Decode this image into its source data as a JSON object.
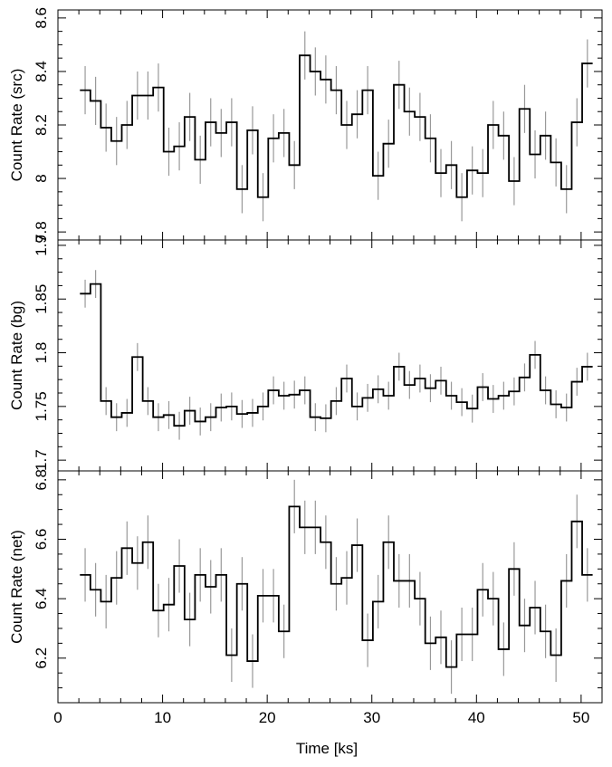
{
  "chart_data": [
    {
      "type": "line",
      "panel": "src",
      "ylabel": "Count Rate (src)",
      "xlabel": "",
      "xlim": [
        0,
        52
      ],
      "ylim": [
        7.77,
        8.63
      ],
      "yticks": [
        7.8,
        8,
        8.2,
        8.4,
        8.6
      ],
      "ytick_labels": [
        "7.8",
        "8",
        "8.2",
        "8.4",
        "8.6"
      ],
      "bin_width": 1.0,
      "series": [
        {
          "style": "step",
          "x": [
            2.6,
            3.6,
            4.6,
            5.6,
            6.6,
            7.6,
            8.6,
            9.6,
            10.6,
            11.6,
            12.6,
            13.6,
            14.6,
            15.6,
            16.6,
            17.6,
            18.6,
            19.6,
            20.6,
            21.6,
            22.6,
            23.6,
            24.6,
            25.6,
            26.6,
            27.6,
            28.6,
            29.6,
            30.6,
            31.6,
            32.6,
            33.6,
            34.6,
            35.6,
            36.6,
            37.6,
            38.6,
            39.6,
            40.6,
            41.6,
            42.6,
            43.6,
            44.6,
            45.6,
            46.6,
            47.6,
            48.6,
            49.6,
            50.6
          ],
          "y": [
            8.33,
            8.29,
            8.19,
            8.14,
            8.2,
            8.31,
            8.31,
            8.34,
            8.1,
            8.12,
            8.23,
            8.07,
            8.21,
            8.17,
            8.21,
            7.96,
            8.18,
            7.93,
            8.15,
            8.17,
            8.05,
            8.46,
            8.4,
            8.37,
            8.33,
            8.2,
            8.24,
            8.33,
            8.01,
            8.13,
            8.35,
            8.25,
            8.23,
            8.15,
            8.02,
            8.05,
            7.93,
            8.03,
            8.02,
            8.2,
            8.16,
            7.99,
            8.26,
            8.09,
            8.16,
            8.06,
            7.96,
            8.21,
            8.43
          ],
          "err": [
            0.09,
            0.09,
            0.09,
            0.09,
            0.09,
            0.09,
            0.09,
            0.09,
            0.09,
            0.09,
            0.09,
            0.09,
            0.09,
            0.09,
            0.09,
            0.09,
            0.09,
            0.09,
            0.09,
            0.09,
            0.09,
            0.09,
            0.09,
            0.09,
            0.09,
            0.09,
            0.09,
            0.09,
            0.09,
            0.09,
            0.09,
            0.09,
            0.09,
            0.09,
            0.09,
            0.09,
            0.09,
            0.09,
            0.09,
            0.09,
            0.09,
            0.09,
            0.09,
            0.09,
            0.09,
            0.09,
            0.09,
            0.09,
            0.09
          ]
        }
      ]
    },
    {
      "type": "line",
      "panel": "bg",
      "ylabel": "Count Rate (bg)",
      "xlabel": "",
      "xlim": [
        0,
        52
      ],
      "ylim": [
        1.69,
        1.905
      ],
      "yticks": [
        1.7,
        1.75,
        1.8,
        1.85,
        1.9
      ],
      "ytick_labels": [
        "1.7",
        "1.75",
        "1.8",
        "1.85",
        "1.9"
      ],
      "bin_width": 1.0,
      "series": [
        {
          "style": "step",
          "x": [
            2.6,
            3.6,
            4.6,
            5.6,
            6.6,
            7.6,
            8.6,
            9.6,
            10.6,
            11.6,
            12.6,
            13.6,
            14.6,
            15.6,
            16.6,
            17.6,
            18.6,
            19.6,
            20.6,
            21.6,
            22.6,
            23.6,
            24.6,
            25.6,
            26.6,
            27.6,
            28.6,
            29.6,
            30.6,
            31.6,
            32.6,
            33.6,
            34.6,
            35.6,
            36.6,
            37.6,
            38.6,
            39.6,
            40.6,
            41.6,
            42.6,
            43.6,
            44.6,
            45.6,
            46.6,
            47.6,
            48.6,
            49.6,
            50.6
          ],
          "y": [
            1.855,
            1.864,
            1.755,
            1.74,
            1.744,
            1.796,
            1.755,
            1.74,
            1.742,
            1.732,
            1.746,
            1.736,
            1.74,
            1.749,
            1.75,
            1.743,
            1.744,
            1.75,
            1.765,
            1.76,
            1.761,
            1.765,
            1.74,
            1.739,
            1.755,
            1.776,
            1.75,
            1.758,
            1.766,
            1.76,
            1.787,
            1.77,
            1.776,
            1.767,
            1.774,
            1.76,
            1.754,
            1.748,
            1.768,
            1.757,
            1.76,
            1.764,
            1.777,
            1.798,
            1.765,
            1.752,
            1.749,
            1.773,
            1.787
          ],
          "err": [
            0.013,
            0.013,
            0.013,
            0.013,
            0.013,
            0.013,
            0.013,
            0.013,
            0.013,
            0.013,
            0.013,
            0.013,
            0.013,
            0.013,
            0.013,
            0.013,
            0.013,
            0.013,
            0.013,
            0.013,
            0.013,
            0.013,
            0.013,
            0.013,
            0.013,
            0.013,
            0.013,
            0.013,
            0.013,
            0.013,
            0.013,
            0.013,
            0.013,
            0.013,
            0.013,
            0.013,
            0.013,
            0.013,
            0.013,
            0.013,
            0.013,
            0.013,
            0.013,
            0.013,
            0.013,
            0.013,
            0.013,
            0.013,
            0.013
          ]
        }
      ]
    },
    {
      "type": "line",
      "panel": "net",
      "ylabel": "Count Rate (net)",
      "xlabel": "Time [ks]",
      "xlim": [
        0,
        52
      ],
      "ylim": [
        6.05,
        6.83
      ],
      "yticks": [
        6.2,
        6.4,
        6.6,
        6.8
      ],
      "ytick_labels": [
        "6.2",
        "6.4",
        "6.6",
        "6.8"
      ],
      "xticks": [
        0,
        10,
        20,
        30,
        40,
        50
      ],
      "xtick_labels": [
        "0",
        "10",
        "20",
        "30",
        "40",
        "50"
      ],
      "bin_width": 1.0,
      "series": [
        {
          "style": "step",
          "x": [
            2.6,
            3.6,
            4.6,
            5.6,
            6.6,
            7.6,
            8.6,
            9.6,
            10.6,
            11.6,
            12.6,
            13.6,
            14.6,
            15.6,
            16.6,
            17.6,
            18.6,
            19.6,
            20.6,
            21.6,
            22.6,
            23.6,
            24.6,
            25.6,
            26.6,
            27.6,
            28.6,
            29.6,
            30.6,
            31.6,
            32.6,
            33.6,
            34.6,
            35.6,
            36.6,
            37.6,
            38.6,
            39.6,
            40.6,
            41.6,
            42.6,
            43.6,
            44.6,
            45.6,
            46.6,
            47.6,
            48.6,
            49.6,
            50.6
          ],
          "y": [
            6.48,
            6.43,
            6.39,
            6.47,
            6.57,
            6.52,
            6.59,
            6.36,
            6.38,
            6.51,
            6.33,
            6.48,
            6.44,
            6.48,
            6.21,
            6.45,
            6.19,
            6.41,
            6.41,
            6.29,
            6.71,
            6.64,
            6.64,
            6.59,
            6.45,
            6.47,
            6.58,
            6.26,
            6.39,
            6.59,
            6.46,
            6.46,
            6.4,
            6.25,
            6.27,
            6.17,
            6.28,
            6.28,
            6.43,
            6.4,
            6.23,
            6.5,
            6.31,
            6.37,
            6.29,
            6.21,
            6.46,
            6.66,
            6.48
          ],
          "err": [
            0.09,
            0.09,
            0.09,
            0.09,
            0.09,
            0.09,
            0.09,
            0.09,
            0.09,
            0.09,
            0.09,
            0.09,
            0.09,
            0.09,
            0.09,
            0.09,
            0.09,
            0.09,
            0.09,
            0.09,
            0.09,
            0.09,
            0.09,
            0.09,
            0.09,
            0.09,
            0.09,
            0.09,
            0.09,
            0.09,
            0.09,
            0.09,
            0.09,
            0.09,
            0.09,
            0.09,
            0.09,
            0.09,
            0.09,
            0.09,
            0.09,
            0.09,
            0.09,
            0.09,
            0.09,
            0.09,
            0.09,
            0.09,
            0.09
          ]
        }
      ]
    }
  ],
  "colors": {
    "axes": "#000000",
    "step_line": "#000000",
    "error_bar": "#999999",
    "background": "#ffffff"
  }
}
